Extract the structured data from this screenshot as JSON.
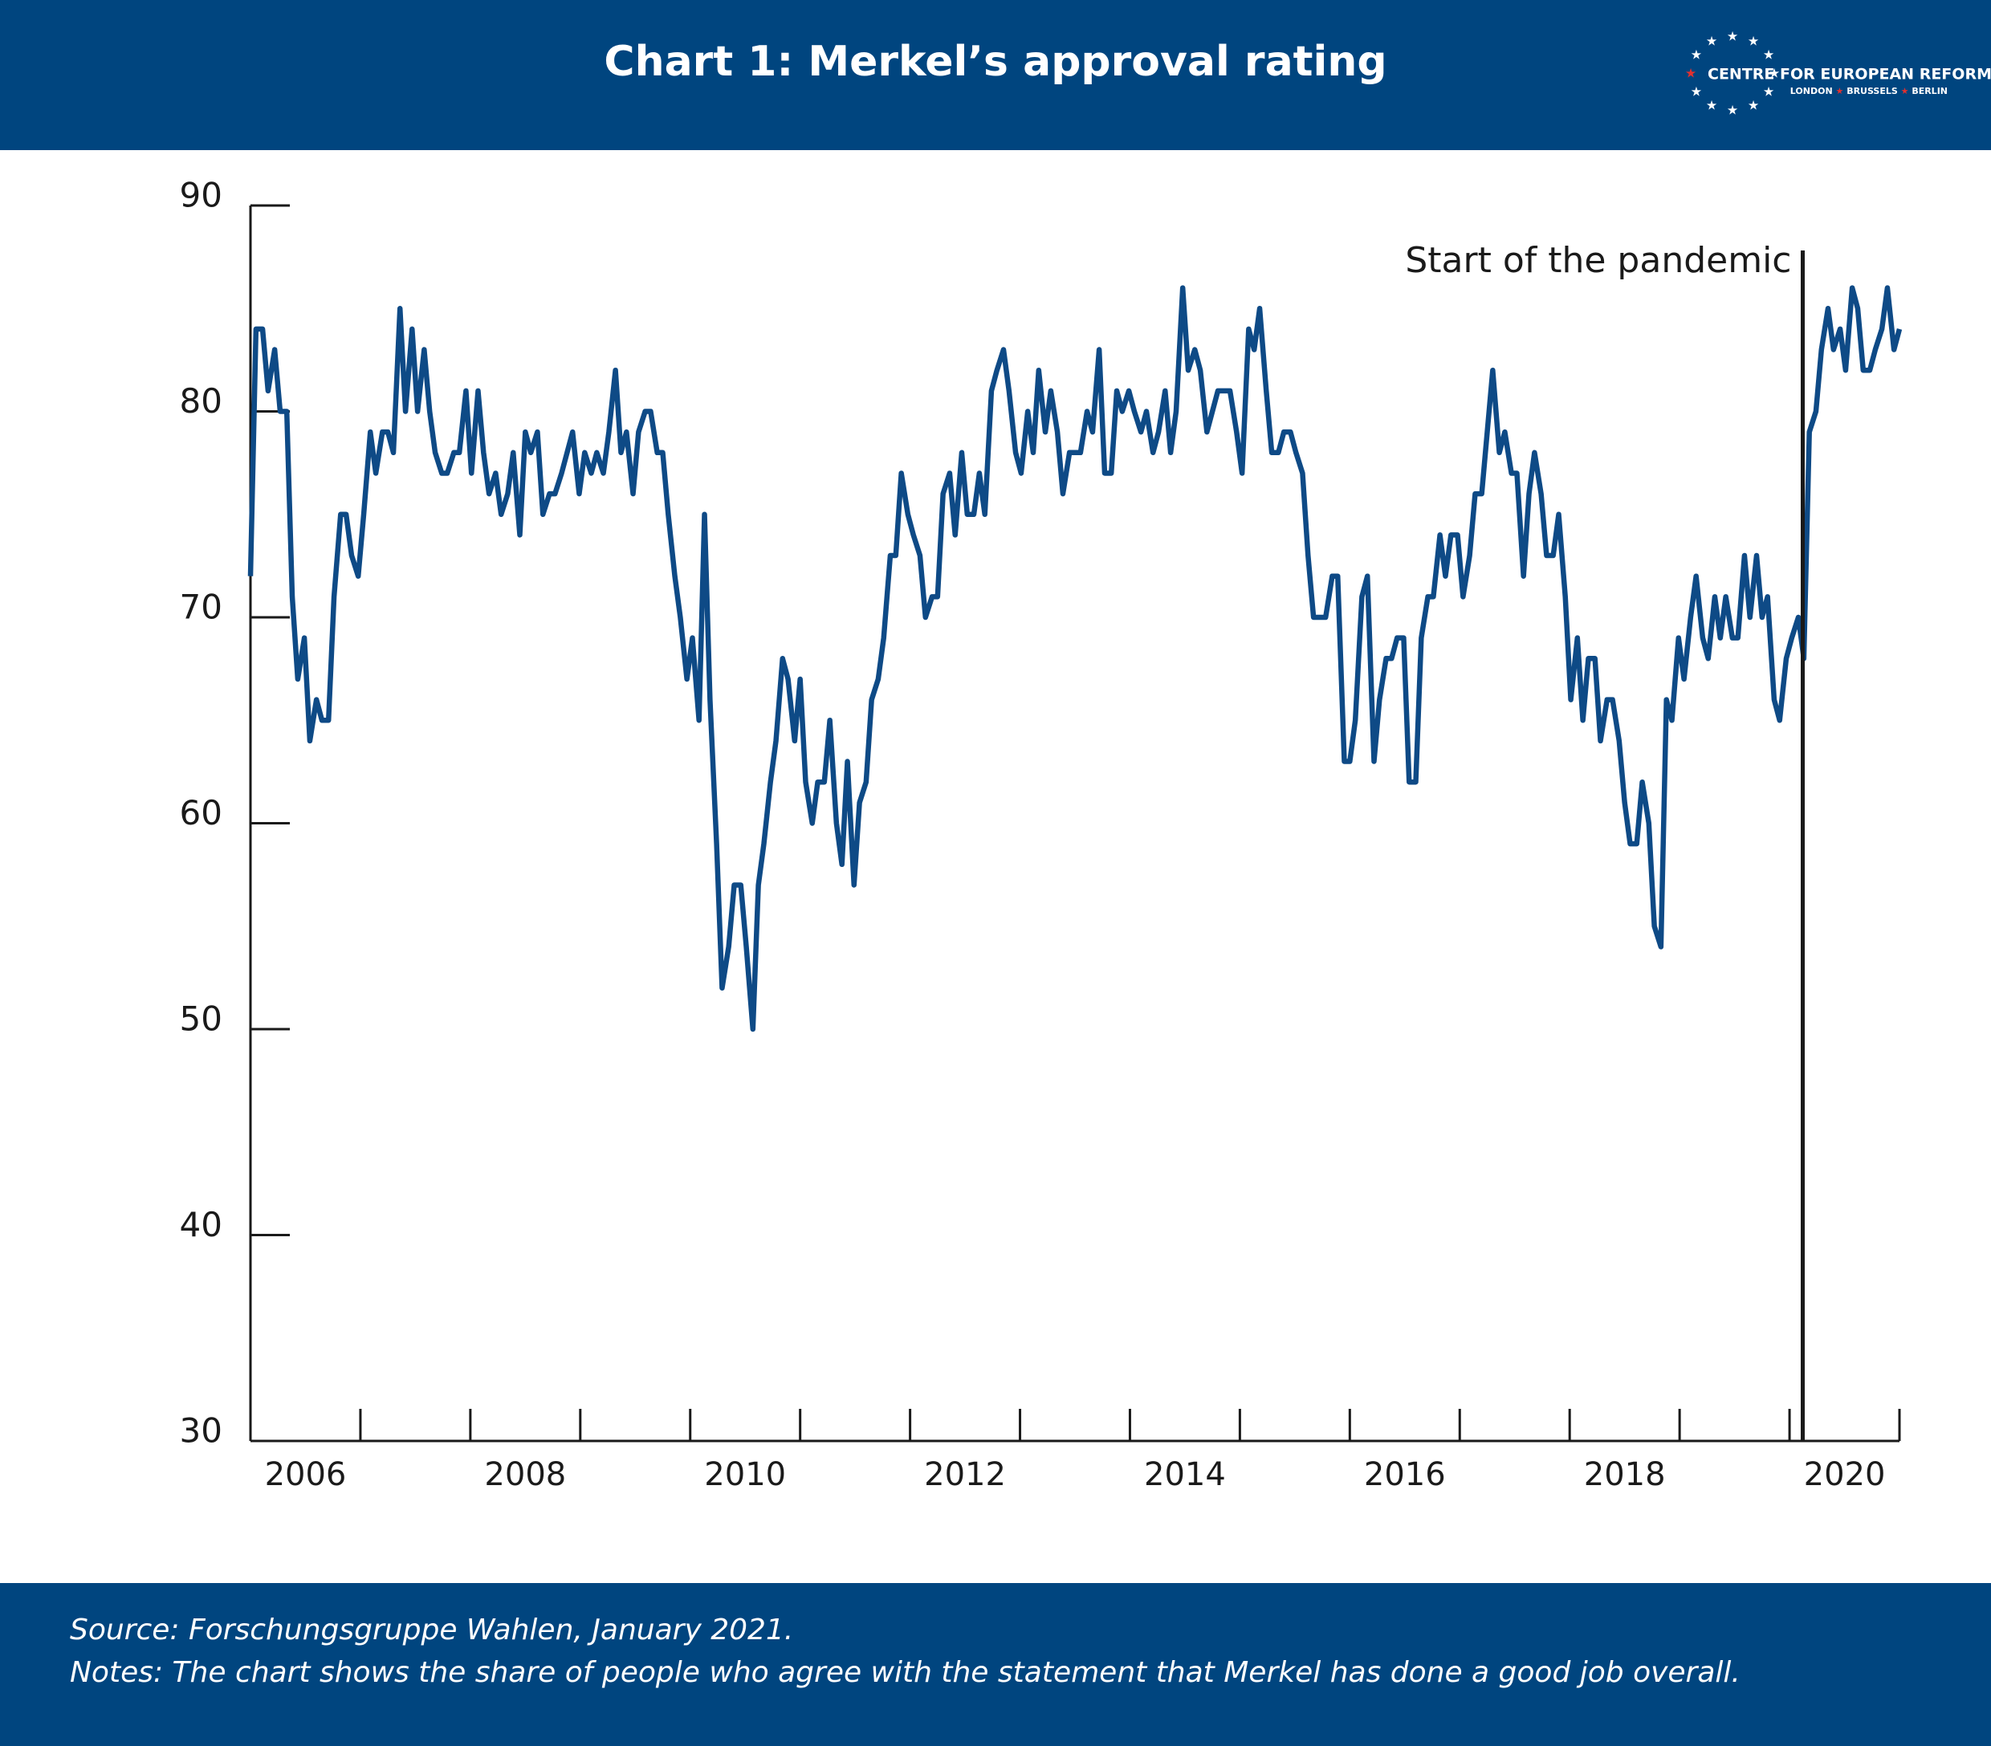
{
  "chart_data": {
    "type": "line",
    "title": "Chart 1: Merkel’s approval rating",
    "source": "Source: Forschungsgruppe Wahlen, January 2021.",
    "notes": "Notes: The chart shows the share of people who agree with the statement that Merkel has done a good job overall.",
    "color": "#0e4a86",
    "xlim": [
      2006,
      2021
    ],
    "xticks": [
      2006,
      2008,
      2010,
      2012,
      2014,
      2016,
      2018,
      2020
    ],
    "xticks_minor": [
      2006,
      2007,
      2008,
      2009,
      2010,
      2011,
      2012,
      2013,
      2014,
      2015,
      2016,
      2017,
      2018,
      2019,
      2020,
      2021
    ],
    "ylim": [
      30,
      90
    ],
    "yticks": [
      30,
      40,
      50,
      60,
      70,
      80,
      90
    ],
    "annotation": {
      "text": "Start of the pandemic",
      "x": 2020.12
    },
    "x": [
      2006,
      2006.05,
      2006.11,
      2006.16,
      2006.22,
      2006.27,
      2006.33,
      2006.38,
      2006.43,
      2006.49,
      2006.54,
      2006.6,
      2006.65,
      2006.71,
      2006.76,
      2006.82,
      2006.87,
      2006.92,
      2006.98,
      2007.03,
      2007.09,
      2007.14,
      2007.2,
      2007.25,
      2007.3,
      2007.36,
      2007.41,
      2007.47,
      2007.52,
      2007.58,
      2007.63,
      2007.68,
      2007.74,
      2007.79,
      2007.85,
      2007.9,
      2007.96,
      2008.01,
      2008.07,
      2008.12,
      2008.17,
      2008.23,
      2008.28,
      2008.34,
      2008.39,
      2008.45,
      2008.5,
      2008.55,
      2008.61,
      2008.66,
      2008.72,
      2008.77,
      2008.83,
      2008.88,
      2008.93,
      2008.99,
      2009.04,
      2009.1,
      2009.15,
      2009.21,
      2009.26,
      2009.32,
      2009.37,
      2009.42,
      2009.48,
      2009.53,
      2009.59,
      2009.64,
      2009.7,
      2009.75,
      2009.8,
      2009.86,
      2009.91,
      2009.97,
      2010.02,
      2010.08,
      2010.13,
      2010.18,
      2010.24,
      2010.29,
      2010.35,
      2010.4,
      2010.46,
      2010.51,
      2010.57,
      2010.62,
      2010.67,
      2010.73,
      2010.78,
      2010.84,
      2010.89,
      2010.95,
      2011,
      2011.05,
      2011.11,
      2011.16,
      2011.22,
      2011.27,
      2011.33,
      2011.38,
      2011.43,
      2011.49,
      2011.54,
      2011.6,
      2011.65,
      2011.71,
      2011.76,
      2011.82,
      2011.87,
      2011.92,
      2011.98,
      2012.03,
      2012.09,
      2012.14,
      2012.2,
      2012.25,
      2012.3,
      2012.36,
      2012.41,
      2012.47,
      2012.52,
      2012.58,
      2012.63,
      2012.68,
      2012.74,
      2012.79,
      2012.85,
      2012.9,
      2012.96,
      2013.01,
      2013.07,
      2013.12,
      2013.17,
      2013.23,
      2013.28,
      2013.34,
      2013.39,
      2013.45,
      2013.5,
      2013.55,
      2013.61,
      2013.66,
      2013.72,
      2013.77,
      2013.83,
      2013.88,
      2013.93,
      2013.99,
      2014.04,
      2014.1,
      2014.15,
      2014.21,
      2014.26,
      2014.32,
      2014.37,
      2014.42,
      2014.48,
      2014.53,
      2014.59,
      2014.64,
      2014.7,
      2014.75,
      2014.8,
      2014.86,
      2014.91,
      2014.97,
      2015.02,
      2015.08,
      2015.13,
      2015.18,
      2015.24,
      2015.29,
      2015.35,
      2015.4,
      2015.46,
      2015.51,
      2015.57,
      2015.62,
      2015.67,
      2015.73,
      2015.78,
      2015.84,
      2015.89,
      2015.95,
      2016,
      2016.05,
      2016.11,
      2016.16,
      2016.22,
      2016.27,
      2016.33,
      2016.38,
      2016.43,
      2016.49,
      2016.54,
      2016.6,
      2016.65,
      2016.71,
      2016.76,
      2016.82,
      2016.87,
      2016.92,
      2016.98,
      2017.03,
      2017.09,
      2017.14,
      2017.2,
      2017.25,
      2017.3,
      2017.36,
      2017.41,
      2017.47,
      2017.52,
      2017.58,
      2017.63,
      2017.68,
      2017.74,
      2017.79,
      2017.85,
      2017.9,
      2017.96,
      2018.01,
      2018.07,
      2018.12,
      2018.17,
      2018.23,
      2018.28,
      2018.34,
      2018.39,
      2018.45,
      2018.5,
      2018.55,
      2018.61,
      2018.66,
      2018.72,
      2018.77,
      2018.83,
      2018.88,
      2018.93,
      2018.99,
      2019.04,
      2019.1,
      2019.15,
      2019.21,
      2019.26,
      2019.32,
      2019.37,
      2019.42,
      2019.48,
      2019.53,
      2019.59,
      2019.64,
      2019.7,
      2019.75,
      2019.8,
      2019.86,
      2019.91,
      2019.97,
      2020.02,
      2020.08,
      2020.13,
      2020.18,
      2020.24,
      2020.29,
      2020.35,
      2020.4,
      2020.46,
      2020.51,
      2020.57,
      2020.62,
      2020.67,
      2020.73,
      2020.78,
      2020.84,
      2020.89,
      2020.95,
      2021
    ],
    "values": [
      72,
      84,
      84,
      81,
      83,
      80,
      80,
      71,
      67,
      69,
      64,
      66,
      65,
      65,
      71,
      75,
      75,
      73,
      72,
      75,
      79,
      77,
      79,
      79,
      78,
      85,
      80,
      84,
      80,
      83,
      80,
      78,
      77,
      77,
      78,
      78,
      81,
      77,
      81,
      78,
      76,
      77,
      75,
      76,
      78,
      74,
      79,
      78,
      79,
      75,
      76,
      76,
      77,
      78,
      79,
      76,
      78,
      77,
      78,
      77,
      79,
      82,
      78,
      79,
      76,
      79,
      80,
      80,
      78,
      78,
      75,
      72,
      70,
      67,
      69,
      65,
      75,
      66,
      59,
      52,
      54,
      57,
      57,
      54,
      50,
      57,
      59,
      62,
      64,
      68,
      67,
      64,
      67,
      62,
      60,
      62,
      62,
      65,
      60,
      58,
      63,
      57,
      61,
      62,
      66,
      67,
      69,
      73,
      73,
      77,
      75,
      74,
      73,
      70,
      71,
      71,
      76,
      77,
      74,
      78,
      75,
      75,
      77,
      75,
      81,
      82,
      83,
      81,
      78,
      77,
      80,
      78,
      82,
      79,
      81,
      79,
      76,
      78,
      78,
      78,
      80,
      79,
      83,
      77,
      77,
      81,
      80,
      81,
      80,
      79,
      80,
      78,
      79,
      81,
      78,
      80,
      86,
      82,
      83,
      82,
      79,
      80,
      81,
      81,
      81,
      79,
      77,
      84,
      83,
      85,
      81,
      78,
      78,
      79,
      79,
      78,
      77,
      73,
      70,
      70,
      70,
      72,
      72,
      63,
      63,
      65,
      71,
      72,
      63,
      66,
      68,
      68,
      69,
      69,
      62,
      62,
      69,
      71,
      71,
      74,
      72,
      74,
      74,
      71,
      73,
      76,
      76,
      79,
      82,
      78,
      79,
      77,
      77,
      72,
      76,
      78,
      76,
      73,
      73,
      75,
      71,
      66,
      69,
      65,
      68,
      68,
      64,
      66,
      66,
      64,
      61,
      59,
      59,
      62,
      60,
      55,
      54,
      66,
      65,
      69,
      67,
      70,
      72,
      69,
      68,
      71,
      69,
      71,
      69,
      69,
      73,
      70,
      73,
      70,
      71,
      66,
      65,
      68,
      69,
      70,
      68,
      79,
      80,
      83,
      85,
      83,
      84,
      82,
      86,
      85,
      82,
      82,
      83,
      84,
      86,
      83,
      84
    ]
  },
  "logo": {
    "name": "CENTRE FOR EUROPEAN REFORM",
    "cities": [
      "LONDON",
      "BRUSSELS",
      "BERLIN"
    ]
  }
}
